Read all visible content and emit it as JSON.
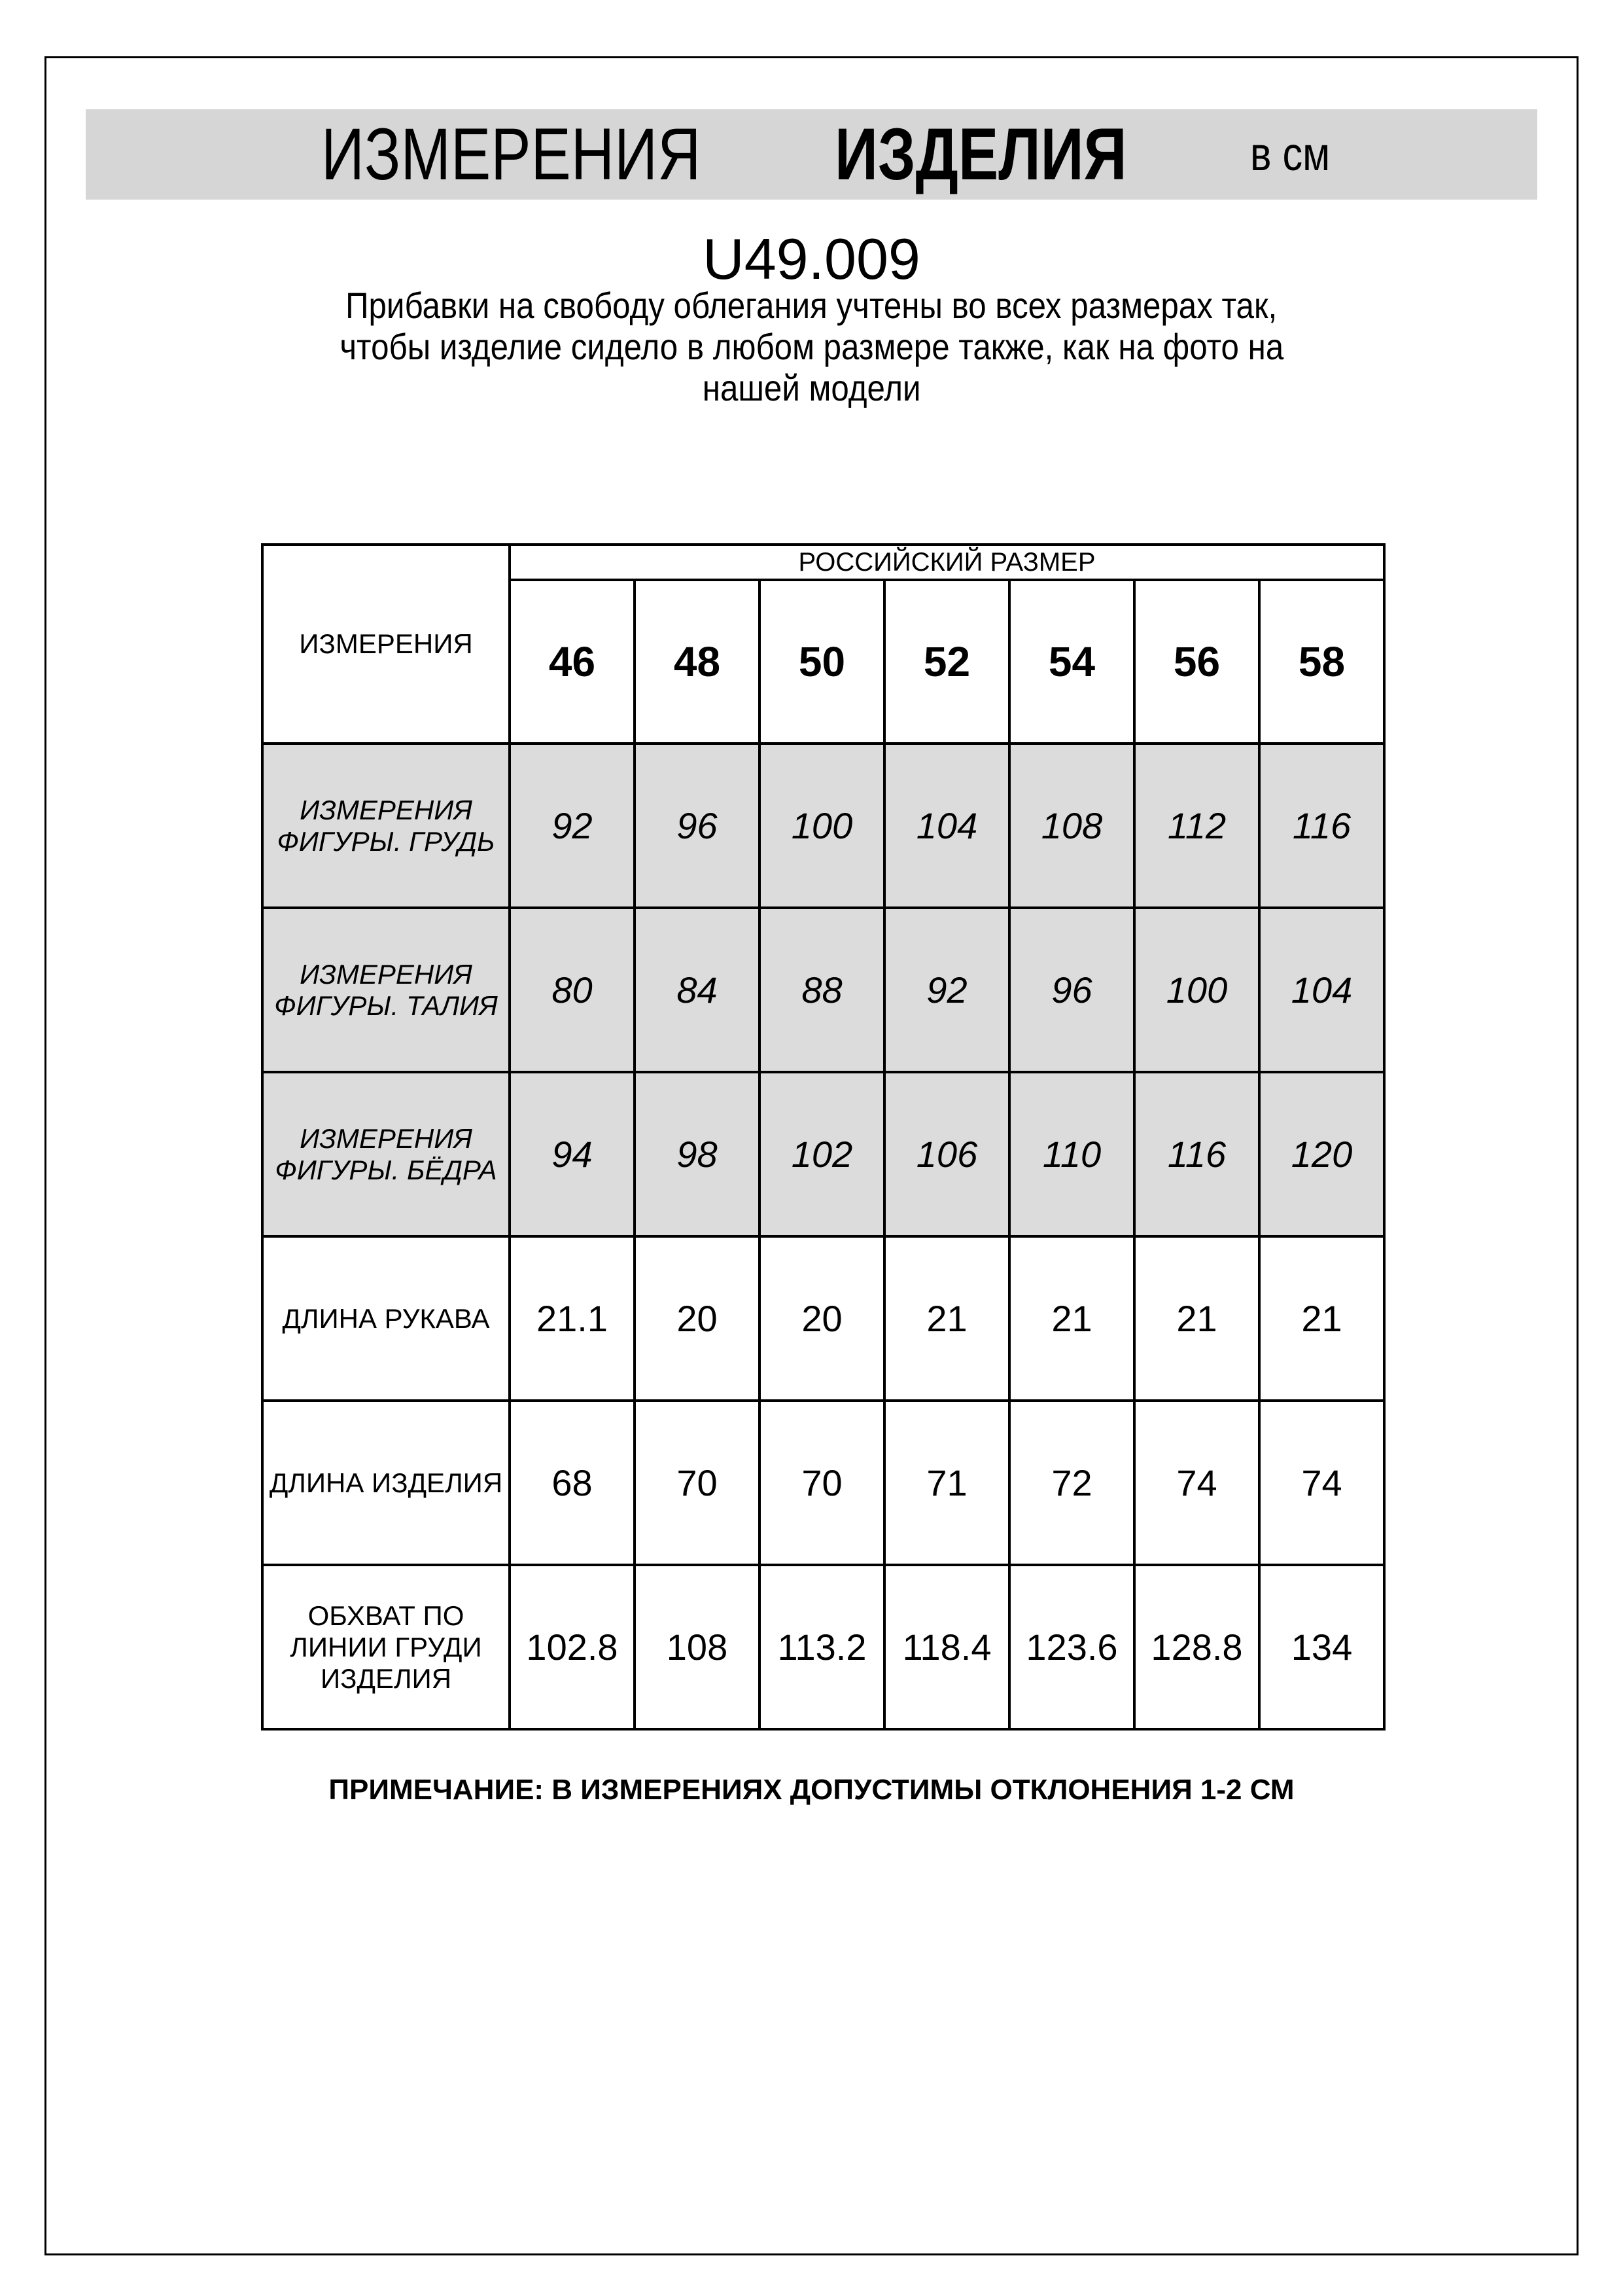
{
  "header": {
    "title_part1": "ИЗМЕРЕНИЯ",
    "title_part2": "ИЗДЕЛИЯ",
    "unit": "в см"
  },
  "model_code": "U49.009",
  "description": [
    "Прибавки на свободу облегания учтены во всех размерах так,",
    "чтобы изделие сидело в любом размере также, как на фото на",
    "нашей модели"
  ],
  "table": {
    "corner_label": "ИЗМЕРЕНИЯ",
    "group_label": "РОССИЙСКИЙ РАЗМЕР",
    "sizes": [
      "46",
      "48",
      "50",
      "52",
      "54",
      "56",
      "58"
    ],
    "rows": [
      {
        "label": [
          "ИЗМЕРЕНИЯ",
          "ФИГУРЫ. ГРУДЬ"
        ],
        "values": [
          "92",
          "96",
          "100",
          "104",
          "108",
          "112",
          "116"
        ],
        "shaded": true
      },
      {
        "label": [
          "ИЗМЕРЕНИЯ",
          "ФИГУРЫ. ТАЛИЯ"
        ],
        "values": [
          "80",
          "84",
          "88",
          "92",
          "96",
          "100",
          "104"
        ],
        "shaded": true
      },
      {
        "label": [
          "ИЗМЕРЕНИЯ",
          "ФИГУРЫ. БЁДРА"
        ],
        "values": [
          "94",
          "98",
          "102",
          "106",
          "110",
          "116",
          "120"
        ],
        "shaded": true
      },
      {
        "label": [
          "ДЛИНА РУКАВА"
        ],
        "values": [
          "21.1",
          "20",
          "20",
          "21",
          "21",
          "21",
          "21"
        ],
        "shaded": false
      },
      {
        "label": [
          "ДЛИНА ИЗДЕЛИЯ"
        ],
        "values": [
          "68",
          "70",
          "70",
          "71",
          "72",
          "74",
          "74"
        ],
        "shaded": false
      },
      {
        "label": [
          "ОБХВАТ ПО",
          "ЛИНИИ ГРУДИ",
          "ИЗДЕЛИЯ"
        ],
        "values": [
          "102.8",
          "108",
          "113.2",
          "118.4",
          "123.6",
          "128.8",
          "134"
        ],
        "shaded": false
      }
    ]
  },
  "note": "ПРИМЕЧАНИЕ: В ИЗМЕРЕНИЯХ ДОПУСТИМЫ ОТКЛОНЕНИЯ 1-2 СМ",
  "colors": {
    "band": "#d6d6d6",
    "shaded_row": "#dcdcdc"
  }
}
